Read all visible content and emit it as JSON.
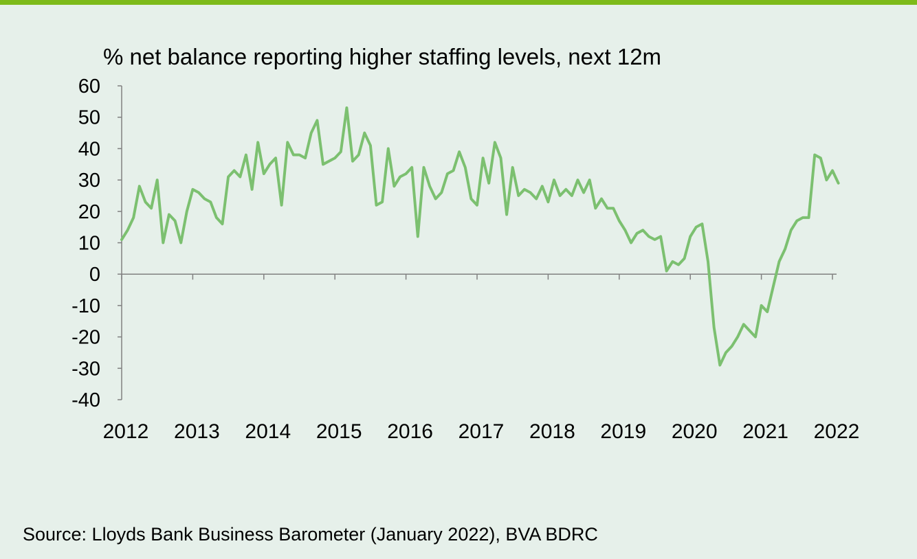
{
  "page": {
    "accent_color": "#7dba1a",
    "background_color": "#e6f0ea"
  },
  "chart_title": "% net balance reporting higher staffing levels, next 12m",
  "source_note": "Source: Lloyds Bank Business Barometer (January 2022), BVA BDRC",
  "chart_data": {
    "type": "line",
    "title": "% net balance reporting higher staffing levels, next 12m",
    "xlabel": "",
    "ylabel": "",
    "ylim": [
      -40,
      60
    ],
    "y_ticks": [
      60,
      50,
      40,
      30,
      20,
      10,
      0,
      -10,
      -20,
      -30,
      -40
    ],
    "y_tick_labels": [
      "60",
      "50",
      "40",
      "30",
      "20",
      "10",
      "0",
      "-10",
      "-20",
      "-30",
      "-40"
    ],
    "x_tick_labels": [
      "2012",
      "2013",
      "2014",
      "2015",
      "2016",
      "2017",
      "2018",
      "2019",
      "2020",
      "2021",
      "2022"
    ],
    "x_range": [
      "2012-01",
      "2022-01"
    ],
    "grid": false,
    "series_color": "#7cc070",
    "series": [
      {
        "values": [
          {
            "x": "2012-01",
            "y": 11
          },
          {
            "x": "2012-02",
            "y": 14
          },
          {
            "x": "2012-03",
            "y": 18
          },
          {
            "x": "2012-04",
            "y": 28
          },
          {
            "x": "2012-05",
            "y": 23
          },
          {
            "x": "2012-06",
            "y": 21
          },
          {
            "x": "2012-07",
            "y": 30
          },
          {
            "x": "2012-08",
            "y": 10
          },
          {
            "x": "2012-09",
            "y": 19
          },
          {
            "x": "2012-10",
            "y": 17
          },
          {
            "x": "2012-11",
            "y": 10
          },
          {
            "x": "2012-12",
            "y": 20
          },
          {
            "x": "2013-01",
            "y": 27
          },
          {
            "x": "2013-02",
            "y": 26
          },
          {
            "x": "2013-03",
            "y": 24
          },
          {
            "x": "2013-04",
            "y": 23
          },
          {
            "x": "2013-05",
            "y": 18
          },
          {
            "x": "2013-06",
            "y": 16
          },
          {
            "x": "2013-07",
            "y": 31
          },
          {
            "x": "2013-08",
            "y": 33
          },
          {
            "x": "2013-09",
            "y": 31
          },
          {
            "x": "2013-10",
            "y": 38
          },
          {
            "x": "2013-11",
            "y": 27
          },
          {
            "x": "2013-12",
            "y": 42
          },
          {
            "x": "2014-01",
            "y": 32
          },
          {
            "x": "2014-02",
            "y": 35
          },
          {
            "x": "2014-03",
            "y": 37
          },
          {
            "x": "2014-04",
            "y": 22
          },
          {
            "x": "2014-05",
            "y": 42
          },
          {
            "x": "2014-06",
            "y": 38
          },
          {
            "x": "2014-07",
            "y": 38
          },
          {
            "x": "2014-08",
            "y": 37
          },
          {
            "x": "2014-09",
            "y": 45
          },
          {
            "x": "2014-10",
            "y": 49
          },
          {
            "x": "2014-11",
            "y": 35
          },
          {
            "x": "2014-12",
            "y": 36
          },
          {
            "x": "2015-01",
            "y": 37
          },
          {
            "x": "2015-02",
            "y": 39
          },
          {
            "x": "2015-03",
            "y": 53
          },
          {
            "x": "2015-04",
            "y": 36
          },
          {
            "x": "2015-05",
            "y": 38
          },
          {
            "x": "2015-06",
            "y": 45
          },
          {
            "x": "2015-07",
            "y": 41
          },
          {
            "x": "2015-08",
            "y": 22
          },
          {
            "x": "2015-09",
            "y": 23
          },
          {
            "x": "2015-10",
            "y": 40
          },
          {
            "x": "2015-11",
            "y": 28
          },
          {
            "x": "2015-12",
            "y": 31
          },
          {
            "x": "2016-01",
            "y": 32
          },
          {
            "x": "2016-02",
            "y": 34
          },
          {
            "x": "2016-03",
            "y": 12
          },
          {
            "x": "2016-04",
            "y": 34
          },
          {
            "x": "2016-05",
            "y": 28
          },
          {
            "x": "2016-06",
            "y": 24
          },
          {
            "x": "2016-07",
            "y": 26
          },
          {
            "x": "2016-08",
            "y": 32
          },
          {
            "x": "2016-09",
            "y": 33
          },
          {
            "x": "2016-10",
            "y": 39
          },
          {
            "x": "2016-11",
            "y": 34
          },
          {
            "x": "2016-12",
            "y": 24
          },
          {
            "x": "2017-01",
            "y": 22
          },
          {
            "x": "2017-02",
            "y": 37
          },
          {
            "x": "2017-03",
            "y": 29
          },
          {
            "x": "2017-04",
            "y": 42
          },
          {
            "x": "2017-05",
            "y": 37
          },
          {
            "x": "2017-06",
            "y": 19
          },
          {
            "x": "2017-07",
            "y": 34
          },
          {
            "x": "2017-08",
            "y": 25
          },
          {
            "x": "2017-09",
            "y": 27
          },
          {
            "x": "2017-10",
            "y": 26
          },
          {
            "x": "2017-11",
            "y": 24
          },
          {
            "x": "2017-12",
            "y": 28
          },
          {
            "x": "2018-01",
            "y": 23
          },
          {
            "x": "2018-02",
            "y": 30
          },
          {
            "x": "2018-03",
            "y": 25
          },
          {
            "x": "2018-04",
            "y": 27
          },
          {
            "x": "2018-05",
            "y": 25
          },
          {
            "x": "2018-06",
            "y": 30
          },
          {
            "x": "2018-07",
            "y": 26
          },
          {
            "x": "2018-08",
            "y": 30
          },
          {
            "x": "2018-09",
            "y": 21
          },
          {
            "x": "2018-10",
            "y": 24
          },
          {
            "x": "2018-11",
            "y": 21
          },
          {
            "x": "2018-12",
            "y": 21
          },
          {
            "x": "2019-01",
            "y": 17
          },
          {
            "x": "2019-02",
            "y": 14
          },
          {
            "x": "2019-03",
            "y": 10
          },
          {
            "x": "2019-04",
            "y": 13
          },
          {
            "x": "2019-05",
            "y": 14
          },
          {
            "x": "2019-06",
            "y": 12
          },
          {
            "x": "2019-07",
            "y": 11
          },
          {
            "x": "2019-08",
            "y": 12
          },
          {
            "x": "2019-09",
            "y": 1
          },
          {
            "x": "2019-10",
            "y": 4
          },
          {
            "x": "2019-11",
            "y": 3
          },
          {
            "x": "2019-12",
            "y": 5
          },
          {
            "x": "2020-01",
            "y": 12
          },
          {
            "x": "2020-02",
            "y": 15
          },
          {
            "x": "2020-03",
            "y": 16
          },
          {
            "x": "2020-04",
            "y": 4
          },
          {
            "x": "2020-05",
            "y": -17
          },
          {
            "x": "2020-06",
            "y": -29
          },
          {
            "x": "2020-07",
            "y": -25
          },
          {
            "x": "2020-08",
            "y": -23
          },
          {
            "x": "2020-09",
            "y": -20
          },
          {
            "x": "2020-10",
            "y": -16
          },
          {
            "x": "2020-11",
            "y": -18
          },
          {
            "x": "2020-12",
            "y": -20
          },
          {
            "x": "2021-01",
            "y": -10
          },
          {
            "x": "2021-02",
            "y": -12
          },
          {
            "x": "2021-03",
            "y": -4
          },
          {
            "x": "2021-04",
            "y": 4
          },
          {
            "x": "2021-05",
            "y": 8
          },
          {
            "x": "2021-06",
            "y": 14
          },
          {
            "x": "2021-07",
            "y": 17
          },
          {
            "x": "2021-08",
            "y": 18
          },
          {
            "x": "2021-09",
            "y": 18
          },
          {
            "x": "2021-10",
            "y": 38
          },
          {
            "x": "2021-11",
            "y": 37
          },
          {
            "x": "2021-12",
            "y": 30
          },
          {
            "x": "2022-01",
            "y": 33
          },
          {
            "x": "2022-02",
            "y": 29
          }
        ]
      }
    ]
  }
}
